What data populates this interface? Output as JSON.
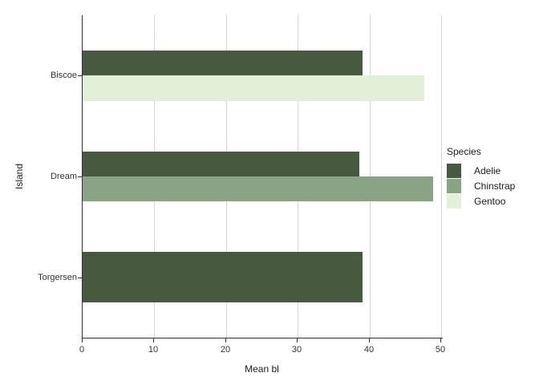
{
  "chart_data": {
    "type": "bar",
    "orientation": "horizontal",
    "title": "",
    "xlabel": "Mean bl",
    "ylabel": "Island",
    "categories": [
      "Biscoe",
      "Dream",
      "Torgersen"
    ],
    "series": [
      {
        "name": "Adelie",
        "color": "#475A41",
        "values": [
          39.0,
          38.6,
          39.0
        ]
      },
      {
        "name": "Chinstrap",
        "color": "#8BA385",
        "values": [
          null,
          48.9,
          null
        ]
      },
      {
        "name": "Gentoo",
        "color": "#E2F0DA",
        "values": [
          47.7,
          null,
          null
        ]
      }
    ],
    "x_ticks": [
      0,
      10,
      20,
      30,
      40,
      50
    ],
    "xlim": [
      0,
      50.2
    ],
    "grid": "vertical-major-only",
    "legend": {
      "title": "Species",
      "position": "right"
    }
  },
  "colors": {
    "background": "#ffffff",
    "axis_line": "#333333",
    "gridline": "#d6d6d6",
    "text": "#333333"
  }
}
